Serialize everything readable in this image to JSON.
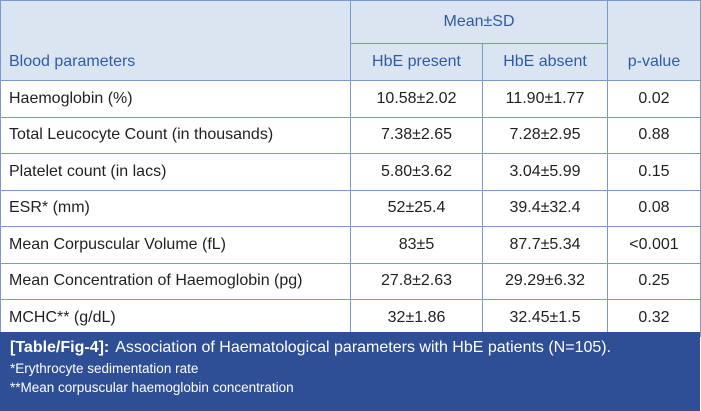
{
  "table": {
    "group_header": "Mean±SD",
    "columns": [
      "Blood parameters",
      "HbE present",
      "HbE absent",
      "p-value"
    ],
    "rows": [
      [
        "Haemoglobin (%)",
        "10.58±2.02",
        "11.90±1.77",
        "0.02"
      ],
      [
        "Total Leucocyte Count (in thousands)",
        "7.38±2.65",
        "7.28±2.95",
        "0.88"
      ],
      [
        "Platelet count (in lacs)",
        "5.80±3.62",
        "3.04±5.99",
        "0.15"
      ],
      [
        "ESR* (mm)",
        "52±25.4",
        "39.4±32.4",
        "0.08"
      ],
      [
        "Mean Corpuscular Volume (fL)",
        "83±5",
        "87.7±5.34",
        "<0.001"
      ],
      [
        "Mean Concentration of Haemoglobin (pg)",
        "27.8±2.63",
        "29.29±6.32",
        "0.25"
      ],
      [
        "MCHC** (g/dL)",
        "32±1.86",
        "32.45±1.5",
        "0.32"
      ]
    ]
  },
  "caption": {
    "label": "[Table/Fig-4]:",
    "text": "Association of Haematological parameters with HbE patients (N=105).",
    "notes": [
      "*Erythrocyte sedimentation rate",
      "**Mean corpuscular haemoglobin concentration"
    ]
  }
}
